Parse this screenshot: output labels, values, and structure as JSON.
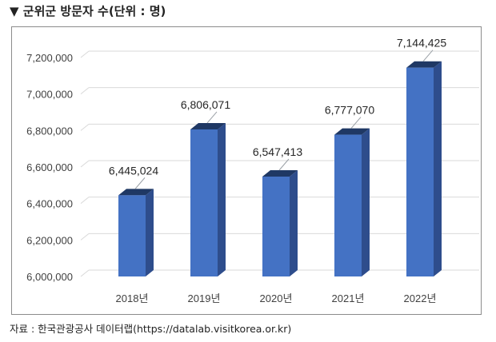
{
  "heading": {
    "marker": "▼",
    "text": "군위군 방문자 수(단위 : 명)"
  },
  "source": "자료 : 한국관광공사 데이터랩(https://datalab.visitkorea.or.kr)",
  "colors": {
    "bar_front": "#4472C4",
    "bar_side": "#2E4D8C",
    "bar_top": "#1F3864",
    "grid": "#D9D9D9",
    "axis_text": "#404040"
  },
  "chart_data": {
    "type": "bar",
    "style": "3d-column",
    "title": "",
    "xlabel": "",
    "ylabel": "",
    "categories": [
      "2018년",
      "2019년",
      "2020년",
      "2021년",
      "2022년"
    ],
    "values": [
      6445024,
      6806071,
      6547413,
      6777070,
      7144425
    ],
    "data_labels": [
      "6,445,024",
      "6,806,071",
      "6,547,413",
      "6,777,070",
      "7,144,425"
    ],
    "ylim": [
      6000000,
      7200000
    ],
    "yticks": [
      6000000,
      6200000,
      6400000,
      6600000,
      6800000,
      7000000,
      7200000
    ],
    "ytick_labels": [
      "6,000,000",
      "6,200,000",
      "6,400,000",
      "6,600,000",
      "6,800,000",
      "7,000,000",
      "7,200,000"
    ],
    "grid": true,
    "legend": false
  }
}
